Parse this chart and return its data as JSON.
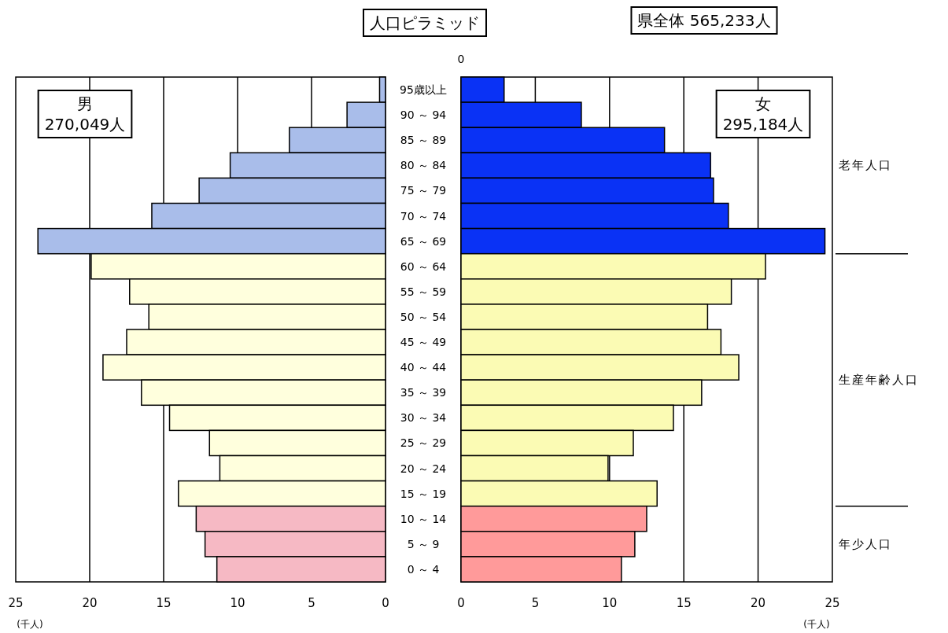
{
  "chart_data": [
    {
      "type": "bar",
      "orientation": "horizontal",
      "title": "人口ピラミッド",
      "xlabel": "(千人)",
      "grid": "x",
      "categories": [
        "95歳以上",
        "90 ～ 94",
        "85 ～ 89",
        "80 ～ 84",
        "75 ～ 79",
        "70 ～ 74",
        "65 ～ 69",
        "60 ～ 64",
        "55 ～ 59",
        "50 ～ 54",
        "45 ～ 49",
        "40 ～ 44",
        "35 ～ 39",
        "30 ～ 34",
        "25 ～ 29",
        "20 ～ 24",
        "15 ～ 19",
        "10 ～ 14",
        "5 ～ 9",
        "0 ～ 4"
      ],
      "values": [
        0.4,
        2.6,
        6.5,
        10.5,
        12.6,
        15.8,
        23.5,
        19.9,
        17.3,
        16.0,
        17.5,
        19.1,
        16.5,
        14.6,
        11.9,
        11.2,
        14.0,
        12.8,
        12.2,
        11.4
      ],
      "colors": [
        "#a9bdea",
        "#a9bdea",
        "#a9bdea",
        "#a9bdea",
        "#a9bdea",
        "#a9bdea",
        "#a9bdea",
        "#ffffdd",
        "#ffffdd",
        "#ffffdd",
        "#ffffdd",
        "#ffffdd",
        "#ffffdd",
        "#ffffdd",
        "#ffffdd",
        "#ffffdd",
        "#ffffdd",
        "#f6b9c4",
        "#f6b9c4",
        "#f6b9c4"
      ],
      "xlim": [
        25,
        0
      ],
      "xticks": [
        25,
        20,
        15,
        10,
        5,
        0
      ],
      "annotations": [
        "男",
        "270,049人"
      ]
    },
    {
      "type": "bar",
      "orientation": "horizontal",
      "subtitle": "県全体 565,233人",
      "xlabel": "(千人)",
      "grid": "x",
      "tick_labels": "x",
      "categories": [
        "95歳以上",
        "90 ～ 94",
        "85 ～ 89",
        "80 ～ 84",
        "75 ～ 79",
        "70 ～ 74",
        "65 ～ 69",
        "60 ～ 64",
        "55 ～ 59",
        "50 ～ 54",
        "45 ～ 49",
        "40 ～ 44",
        "35 ～ 39",
        "30 ～ 34",
        "25 ～ 29",
        "20 ～ 24",
        "15 ～ 19",
        "10 ～ 14",
        "5 ～ 9",
        "0 ～ 4"
      ],
      "values": [
        2.9,
        8.1,
        13.7,
        16.8,
        17.0,
        18.0,
        24.5,
        20.5,
        18.2,
        16.6,
        17.5,
        18.7,
        16.2,
        14.3,
        11.6,
        9.9,
        13.2,
        12.5,
        11.7,
        10.8
      ],
      "colors": [
        "#0a32f5",
        "#0a32f5",
        "#0a32f5",
        "#0a32f5",
        "#0a32f5",
        "#0a32f5",
        "#0a32f5",
        "#fbfbb4",
        "#fbfbb4",
        "#fbfbb4",
        "#fbfbb4",
        "#fbfbb4",
        "#fbfbb4",
        "#fbfbb4",
        "#fbfbb4",
        "#fbfbb4",
        "#fbfbb4",
        "#ff9a9a",
        "#ff9a9a",
        "#ff9a9a"
      ],
      "xlim": [
        0,
        25
      ],
      "xticks": [
        0,
        5,
        10,
        15,
        20,
        25
      ],
      "annotations": [
        "女",
        "295,184人",
        "0",
        "老年人口",
        "生産年齢人口",
        "年少人口"
      ]
    }
  ]
}
